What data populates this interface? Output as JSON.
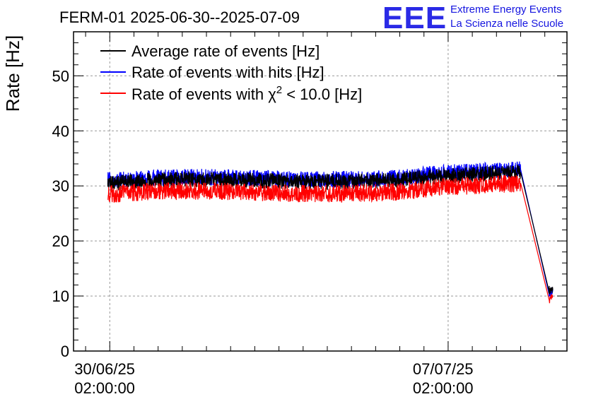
{
  "chart_data": {
    "type": "line",
    "title": "FERM-01 2025-06-30--2025-07-09",
    "xlabel": "",
    "ylabel": "Rate [Hz]",
    "ylim": [
      0,
      58
    ],
    "yticks": [
      0,
      10,
      20,
      30,
      40,
      50
    ],
    "xlim": [
      "2025-06-29 08:00",
      "2025-07-09 13:00"
    ],
    "xticks": [
      {
        "x": "2025-06-30 02:00",
        "date": "30/06/25",
        "time": "02:00:00"
      },
      {
        "x": "2025-07-07 02:00",
        "date": "07/07/25",
        "time": "02:00:00"
      }
    ],
    "grid": true,
    "legend_position": "top-left",
    "series": [
      {
        "name": "Average rate of events [Hz]",
        "color": "#000000",
        "points": [
          [
            "2025-06-30 01:00",
            30.5
          ],
          [
            "2025-07-01 00:00",
            31.0
          ],
          [
            "2025-07-02 00:00",
            31.2
          ],
          [
            "2025-07-03 00:00",
            31.0
          ],
          [
            "2025-07-04 00:00",
            30.8
          ],
          [
            "2025-07-05 00:00",
            30.8
          ],
          [
            "2025-07-06 00:00",
            31.0
          ],
          [
            "2025-07-07 00:00",
            31.8
          ],
          [
            "2025-07-08 14:00",
            32.5
          ],
          [
            "2025-07-09 04:00",
            11.0
          ],
          [
            "2025-07-09 06:00",
            10.8
          ]
        ]
      },
      {
        "name": "Rate of events with hits [Hz]",
        "color": "#0000ff",
        "points": [
          [
            "2025-06-30 01:00",
            31.0
          ],
          [
            "2025-07-01 00:00",
            31.5
          ],
          [
            "2025-07-02 00:00",
            31.6
          ],
          [
            "2025-07-03 00:00",
            31.4
          ],
          [
            "2025-07-04 00:00",
            31.2
          ],
          [
            "2025-07-05 00:00",
            31.2
          ],
          [
            "2025-07-06 00:00",
            31.4
          ],
          [
            "2025-07-07 00:00",
            32.4
          ],
          [
            "2025-07-08 14:00",
            33.0
          ],
          [
            "2025-07-09 04:00",
            10.5
          ],
          [
            "2025-07-09 06:00",
            10.5
          ]
        ]
      },
      {
        "name": "Rate of events with χ2 < 10.0 [Hz]",
        "color": "#ff0000",
        "points": [
          [
            "2025-06-30 01:00",
            28.5
          ],
          [
            "2025-07-01 00:00",
            29.0
          ],
          [
            "2025-07-02 00:00",
            29.1
          ],
          [
            "2025-07-03 00:00",
            28.9
          ],
          [
            "2025-07-04 00:00",
            28.6
          ],
          [
            "2025-07-05 00:00",
            28.6
          ],
          [
            "2025-07-06 00:00",
            28.9
          ],
          [
            "2025-07-07 00:00",
            29.8
          ],
          [
            "2025-07-08 14:00",
            30.5
          ],
          [
            "2025-07-09 04:00",
            9.5
          ],
          [
            "2025-07-09 06:00",
            9.5
          ]
        ]
      }
    ]
  },
  "logo": {
    "mark": "EEE",
    "line1": "Extreme Energy Events",
    "line2": "La Scienza nelle Scuole"
  }
}
